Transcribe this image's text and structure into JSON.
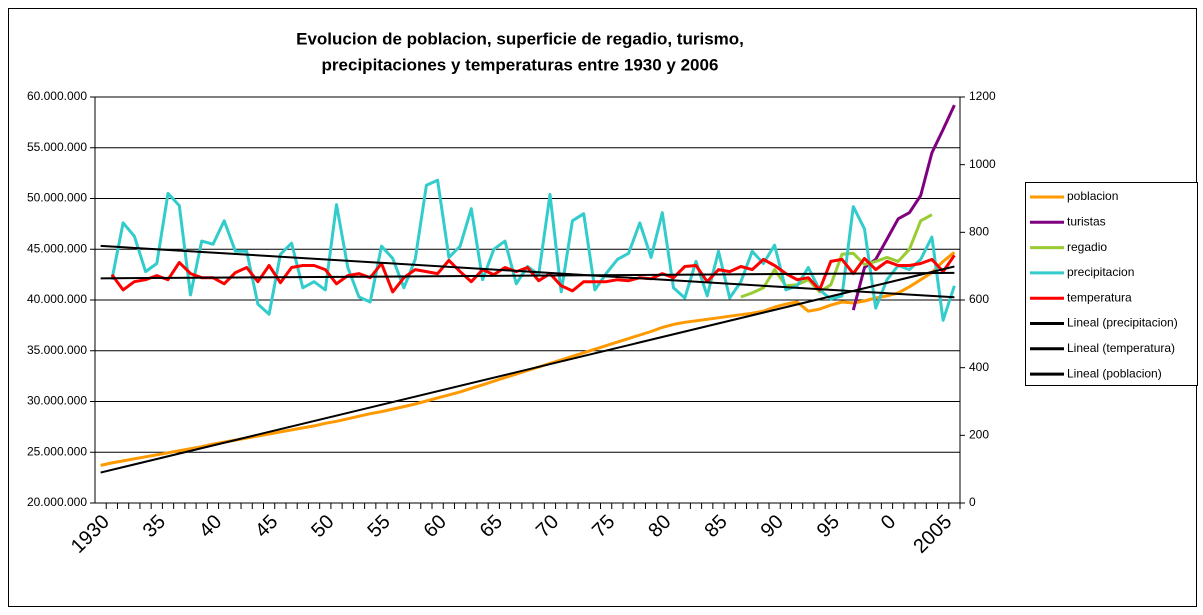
{
  "chart_data": {
    "type": "line",
    "title": [
      "Evolucion de poblacion, superficie de regadio, turismo,",
      "precipitaciones y temperaturas entre 1930 y 2006"
    ],
    "categories": [
      "1930",
      null,
      null,
      null,
      null,
      "35",
      null,
      null,
      null,
      null,
      "40",
      null,
      null,
      null,
      null,
      "45",
      null,
      null,
      null,
      null,
      "50",
      null,
      null,
      null,
      null,
      "55",
      null,
      null,
      null,
      null,
      "60",
      null,
      null,
      null,
      null,
      "65",
      null,
      null,
      null,
      null,
      "70",
      null,
      null,
      null,
      null,
      "75",
      null,
      null,
      null,
      null,
      "80",
      null,
      null,
      null,
      null,
      "85",
      null,
      null,
      null,
      null,
      "90",
      null,
      null,
      null,
      null,
      "95",
      null,
      null,
      null,
      null,
      "0",
      null,
      null,
      null,
      null,
      "2005",
      null
    ],
    "ylim": [
      20000000,
      60000000
    ],
    "yticks": [
      {
        "value": 20000000,
        "label": "20.000.000"
      },
      {
        "value": 25000000,
        "label": "25.000.000"
      },
      {
        "value": 30000000,
        "label": "30.000.000"
      },
      {
        "value": 35000000,
        "label": "35.000.000"
      },
      {
        "value": 40000000,
        "label": "40.000.000"
      },
      {
        "value": 45000000,
        "label": "45.000.000"
      },
      {
        "value": 50000000,
        "label": "50.000.000"
      },
      {
        "value": 55000000,
        "label": "55.000.000"
      },
      {
        "value": 60000000,
        "label": "60.000.000"
      }
    ],
    "y2lim": [
      0,
      1200
    ],
    "y2ticks": [
      0,
      200,
      400,
      600,
      800,
      1000,
      1200
    ],
    "grid": true,
    "legend": "right",
    "series": [
      {
        "name": "poblacion",
        "color": "#FF9900",
        "values": [
          23700000,
          23950000,
          24150000,
          24350000,
          24550000,
          24750000,
          24950000,
          25150000,
          25350000,
          25550000,
          25800000,
          26000000,
          26200000,
          26400000,
          26600000,
          26800000,
          27000000,
          27200000,
          27400000,
          27600000,
          27850000,
          28050000,
          28300000,
          28550000,
          28800000,
          29000000,
          29250000,
          29500000,
          29750000,
          30050000,
          30350000,
          30650000,
          30950000,
          31300000,
          31650000,
          32000000,
          32350000,
          32700000,
          33050000,
          33400000,
          33750000,
          34100000,
          34450000,
          34800000,
          35150000,
          35500000,
          35850000,
          36200000,
          36550000,
          36900000,
          37300000,
          37600000,
          37800000,
          37950000,
          38100000,
          38250000,
          38400000,
          38550000,
          38700000,
          38900000,
          39300000,
          39600000,
          39800000,
          38900000,
          39100000,
          39500000,
          39800000,
          39700000,
          39900000,
          40200000,
          40400000,
          40700000,
          41300000,
          42000000,
          42700000,
          43800000,
          44700000
        ]
      },
      {
        "name": "turistas",
        "color": "#800080",
        "values": [
          null,
          null,
          null,
          null,
          null,
          null,
          null,
          null,
          null,
          null,
          null,
          null,
          null,
          null,
          null,
          null,
          null,
          null,
          null,
          null,
          null,
          null,
          null,
          null,
          null,
          null,
          null,
          null,
          null,
          null,
          null,
          null,
          null,
          null,
          null,
          null,
          null,
          null,
          null,
          null,
          null,
          null,
          null,
          null,
          null,
          null,
          null,
          null,
          null,
          null,
          null,
          null,
          null,
          null,
          null,
          null,
          null,
          null,
          null,
          null,
          null,
          null,
          null,
          null,
          null,
          null,
          null,
          39000000,
          43200000,
          44000000,
          46000000,
          48000000,
          48600000,
          50300000,
          54500000,
          56800000,
          59200000
        ]
      },
      {
        "name": "regadio",
        "color": "#99CC33",
        "values": [
          null,
          null,
          null,
          null,
          null,
          null,
          null,
          null,
          null,
          null,
          null,
          null,
          null,
          null,
          null,
          null,
          null,
          null,
          null,
          null,
          null,
          null,
          null,
          null,
          null,
          null,
          null,
          null,
          null,
          null,
          null,
          null,
          null,
          null,
          null,
          null,
          null,
          null,
          null,
          null,
          null,
          null,
          null,
          null,
          null,
          null,
          null,
          null,
          null,
          null,
          null,
          null,
          null,
          null,
          null,
          null,
          null,
          40300000,
          40700000,
          41200000,
          43000000,
          41400000,
          41500000,
          42000000,
          40800000,
          41500000,
          44500000,
          44600000,
          43500000,
          43800000,
          44200000,
          43800000,
          45000000,
          47800000,
          48400000,
          null,
          null
        ]
      },
      {
        "name": "precipitacion",
        "color": "#33CCCC",
        "axis": "y2",
        "values": [
          null,
          660,
          828,
          789,
          684,
          708,
          915,
          879,
          615,
          774,
          765,
          834,
          744,
          744,
          588,
          558,
          735,
          768,
          636,
          654,
          630,
          882,
          696,
          609,
          594,
          759,
          723,
          636,
          720,
          939,
          954,
          726,
          759,
          870,
          660,
          750,
          774,
          648,
          699,
          675,
          912,
          624,
          834,
          855,
          630,
          678,
          720,
          738,
          828,
          726,
          858,
          636,
          606,
          714,
          612,
          744,
          606,
          654,
          744,
          708,
          762,
          630,
          642,
          696,
          630,
          603,
          612,
          876,
          810,
          576,
          660,
          702,
          690,
          720,
          786,
          540,
          642
        ]
      },
      {
        "name": "temperatura",
        "color": "#FF0000",
        "axis": "y2",
        "values": [
          null,
          675,
          630,
          654,
          660,
          672,
          660,
          711,
          678,
          666,
          666,
          648,
          681,
          696,
          654,
          702,
          651,
          696,
          702,
          702,
          690,
          648,
          672,
          678,
          666,
          708,
          624,
          666,
          690,
          684,
          678,
          717,
          684,
          654,
          690,
          675,
          696,
          684,
          696,
          657,
          678,
          642,
          627,
          654,
          654,
          654,
          660,
          657,
          666,
          663,
          678,
          666,
          699,
          702,
          654,
          690,
          684,
          699,
          690,
          720,
          702,
          678,
          660,
          666,
          630,
          714,
          720,
          678,
          723,
          690,
          714,
          702,
          702,
          708,
          720,
          684,
          732
        ]
      }
    ],
    "trendlines": [
      {
        "name": "Lineal (precipitacion)",
        "color": "#000000",
        "axis": "y2",
        "start": 760,
        "end": 608
      },
      {
        "name": "Lineal (temperatura)",
        "color": "#000000",
        "axis": "y2",
        "start": 664,
        "end": 680
      },
      {
        "name": "Lineal (poblacion)",
        "color": "#000000",
        "start": 23000000,
        "end": 43300000
      }
    ]
  }
}
